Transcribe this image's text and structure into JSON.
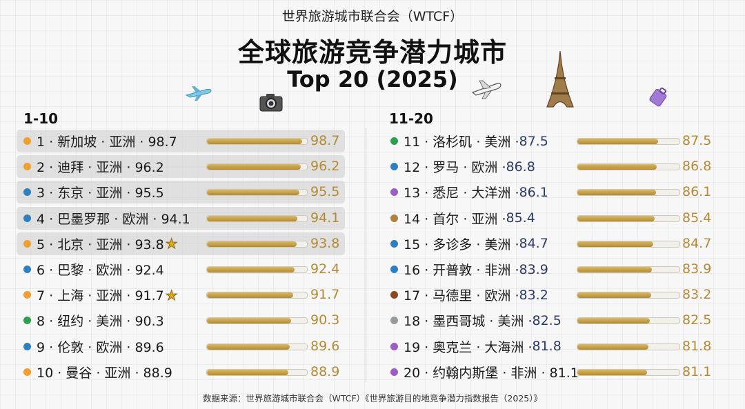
{
  "header": {
    "org": "世界旅游城市联合会（WTCF）",
    "title": "全球旅游竞争潜力城市",
    "subtitle": "Top 20 (2025)"
  },
  "sections": {
    "left_title": "1-10",
    "right_title": "11-20"
  },
  "icons": [
    "airplane-icon",
    "camera-icon",
    "airplane-icon",
    "eiffel-tower-icon",
    "suitcase-icon",
    "star-icon"
  ],
  "colors": {
    "bar_gold": "#c9a24a",
    "value_gold": "#b48a36",
    "asia": "#f0a030",
    "europe": "#2f7fc0",
    "americas": "#2e9e4f",
    "oceania": "#9b5ec2",
    "africa_europe_dark": "#8a4a1f"
  },
  "chart_data": {
    "type": "bar",
    "title": "全球旅游竞争潜力城市",
    "subtitle": "Top 20 (2025)",
    "xlim": [
      0,
      100
    ],
    "rows": [
      {
        "rank": 1,
        "label": "1 · 新加坡 · 亚洲 · 98.7",
        "score_text": "98.7",
        "value": 98.7,
        "color": "#f0a030",
        "highlight": true,
        "star": false
      },
      {
        "rank": 2,
        "label": "2 · 迪拜 · 亚洲 · 96.2",
        "score_text": "96.2",
        "value": 96.2,
        "color": "#f0a030",
        "highlight": true,
        "star": false
      },
      {
        "rank": 3,
        "label": "3 · 东京 · 亚洲 · 95.5",
        "score_text": "95.5",
        "value": 95.5,
        "color": "#2f7fc0",
        "highlight": true,
        "star": false
      },
      {
        "rank": 4,
        "label": "4 · 巴墨罗那 · 欧洲 · 94.1",
        "score_text": "94.1",
        "value": 94.1,
        "color": "#2f7fc0",
        "highlight": true,
        "star": false
      },
      {
        "rank": 5,
        "label": "5 · 北京 · 亚洲 · 93.8",
        "score_text": "93.8",
        "value": 93.8,
        "color": "#f0a030",
        "highlight": true,
        "star": true
      },
      {
        "rank": 6,
        "label": "6 · 巴黎 · 欧洲 · 92.4",
        "score_text": "92.4",
        "value": 92.4,
        "color": "#2f7fc0",
        "highlight": false,
        "star": false
      },
      {
        "rank": 7,
        "label": "7 · 上海 · 亚洲 · 91.7",
        "score_text": "91.7",
        "value": 91.7,
        "color": "#f0a030",
        "highlight": false,
        "star": true
      },
      {
        "rank": 8,
        "label": "8 · 纽约 · 美洲 · 90.3",
        "score_text": "90.3",
        "value": 90.3,
        "color": "#2e9e4f",
        "highlight": false,
        "star": false
      },
      {
        "rank": 9,
        "label": "9 · 伦敦 · 欧洲 · 89.6",
        "score_text": "89.6",
        "value": 89.6,
        "color": "#2f7fc0",
        "highlight": false,
        "star": false
      },
      {
        "rank": 10,
        "label": "10 · 曼谷 · 亚洲 · 88.9",
        "score_text": "88.9",
        "value": 88.9,
        "color": "#f0a030",
        "highlight": false,
        "star": false
      },
      {
        "rank": 11,
        "label": "11 · 洛杉矶 · 美洲 · ",
        "score_text": "87.5",
        "value": 87.5,
        "color": "#2e9e4f",
        "highlight": false,
        "star": false
      },
      {
        "rank": 12,
        "label": "12 · 罗马 · 欧洲 · ",
        "score_text": "86.8",
        "value": 86.8,
        "color": "#2f7fc0",
        "highlight": false,
        "star": false
      },
      {
        "rank": 13,
        "label": "13 · 悉尼 · 大洋洲 · ",
        "score_text": "86.1",
        "value": 86.1,
        "color": "#9b5ec2",
        "highlight": false,
        "star": false
      },
      {
        "rank": 14,
        "label": "14 · 首尔 · 亚洲 · ",
        "score_text": "85.4",
        "value": 85.4,
        "color": "#b08040",
        "highlight": false,
        "star": false
      },
      {
        "rank": 15,
        "label": "15 · 多诊多 · 美洲 · ",
        "score_text": "84.7",
        "value": 84.7,
        "color": "#2f7fc0",
        "highlight": false,
        "star": false
      },
      {
        "rank": 16,
        "label": "16 · 开普敦 · 非洲 · ",
        "score_text": "83.9",
        "value": 83.9,
        "color": "#2f7fc0",
        "highlight": false,
        "star": false
      },
      {
        "rank": 17,
        "label": "17 · 马德里 · 欧洲 · ",
        "score_text": "83.2",
        "value": 83.2,
        "color": "#8a4a1f",
        "highlight": false,
        "star": false
      },
      {
        "rank": 18,
        "label": "18 · 墨西哥城 · 美洲 · ",
        "score_text": "82.5",
        "value": 82.5,
        "color": "#9a9a9a",
        "highlight": false,
        "star": false
      },
      {
        "rank": 19,
        "label": "19 · 奥克兰 · 大海洲 · ",
        "score_text": "81.8",
        "value": 81.8,
        "color": "#9b5ec2",
        "highlight": false,
        "star": false
      },
      {
        "rank": 20,
        "label": "20 · 约翰内斯堡 · 非洲 · 81.1",
        "score_text": "81.1",
        "value": 81.1,
        "color": "#9b5ec2",
        "highlight": false,
        "star": false
      }
    ]
  },
  "footer": {
    "source": "数据来源：世界旅游城市联合会（WTCF）《世界旅游目的地竞争潜力指数报告（2025）》"
  }
}
